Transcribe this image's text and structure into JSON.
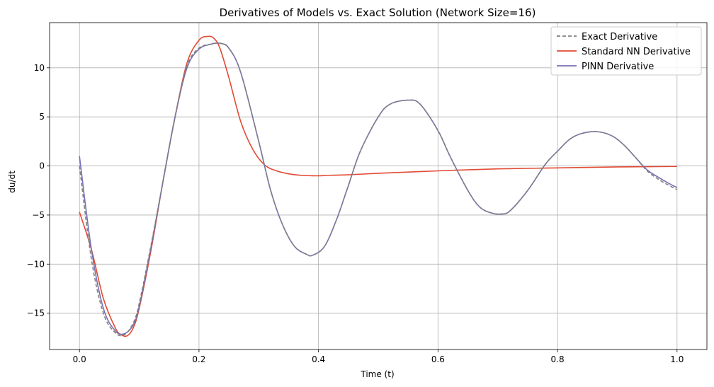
{
  "chart_data": {
    "type": "line",
    "title": "Derivatives of Models vs. Exact Solution (Network Size=16)",
    "xlabel": "Time (t)",
    "ylabel": "du/dt",
    "xlim": [
      -0.05,
      1.05
    ],
    "ylim": [
      -18.7,
      14.6
    ],
    "xticks": [
      0.0,
      0.2,
      0.4,
      0.6,
      0.8,
      1.0
    ],
    "xtick_labels": [
      "0.0",
      "0.2",
      "0.4",
      "0.6",
      "0.8",
      "1.0"
    ],
    "yticks": [
      -15,
      -10,
      -5,
      0,
      5,
      10
    ],
    "ytick_labels": [
      "−15",
      "−10",
      "−5",
      "0",
      "5",
      "10"
    ],
    "grid": true,
    "legend_position": "top-right",
    "series": [
      {
        "name": "Exact Derivative",
        "color": "#808080",
        "dash": "dashed",
        "x": [
          0.0,
          0.02,
          0.04,
          0.06,
          0.075,
          0.09,
          0.1,
          0.12,
          0.14,
          0.16,
          0.18,
          0.2,
          0.22,
          0.235,
          0.25,
          0.27,
          0.3,
          0.32,
          0.34,
          0.36,
          0.38,
          0.39,
          0.41,
          0.43,
          0.45,
          0.47,
          0.5,
          0.52,
          0.55,
          0.57,
          0.6,
          0.62,
          0.65,
          0.67,
          0.69,
          0.705,
          0.72,
          0.75,
          0.78,
          0.8,
          0.82,
          0.84,
          0.865,
          0.89,
          0.91,
          0.93,
          0.95,
          0.97,
          0.99,
          1.0
        ],
        "y": [
          0.0,
          -9.5,
          -15.0,
          -17.0,
          -17.2,
          -16.0,
          -14.0,
          -8.0,
          -1.5,
          5.0,
          10.2,
          12.0,
          12.4,
          12.5,
          12.0,
          9.5,
          2.5,
          -2.5,
          -6.0,
          -8.2,
          -9.0,
          -9.1,
          -8.2,
          -5.5,
          -2.0,
          1.5,
          5.0,
          6.3,
          6.7,
          6.3,
          3.6,
          1.0,
          -2.5,
          -4.2,
          -4.8,
          -4.9,
          -4.6,
          -2.5,
          0.2,
          1.5,
          2.7,
          3.3,
          3.5,
          3.1,
          2.2,
          0.9,
          -0.5,
          -1.4,
          -2.1,
          -2.4
        ]
      },
      {
        "name": "Standard NN Derivative",
        "color": "#e24a33",
        "dash": "solid",
        "x": [
          0.0,
          0.02,
          0.04,
          0.06,
          0.07,
          0.08,
          0.09,
          0.1,
          0.12,
          0.14,
          0.16,
          0.18,
          0.2,
          0.215,
          0.225,
          0.235,
          0.25,
          0.27,
          0.29,
          0.31,
          0.33,
          0.35,
          0.37,
          0.39,
          0.4,
          0.42,
          0.45,
          0.5,
          0.6,
          0.7,
          0.8,
          0.9,
          1.0
        ],
        "y": [
          -4.7,
          -8.5,
          -13.5,
          -16.5,
          -17.2,
          -17.3,
          -16.5,
          -14.5,
          -8.5,
          -1.5,
          5.0,
          10.5,
          12.8,
          13.2,
          13.0,
          12.0,
          9.0,
          4.5,
          1.7,
          0.1,
          -0.5,
          -0.8,
          -0.95,
          -1.0,
          -1.0,
          -0.95,
          -0.9,
          -0.75,
          -0.5,
          -0.3,
          -0.2,
          -0.1,
          -0.05
        ]
      },
      {
        "name": "PINN Derivative",
        "color": "#7570b3",
        "dash": "solid",
        "x": [
          0.0,
          0.02,
          0.04,
          0.06,
          0.075,
          0.09,
          0.1,
          0.12,
          0.14,
          0.16,
          0.18,
          0.2,
          0.22,
          0.235,
          0.25,
          0.27,
          0.3,
          0.32,
          0.34,
          0.36,
          0.38,
          0.39,
          0.41,
          0.43,
          0.45,
          0.47,
          0.5,
          0.52,
          0.55,
          0.57,
          0.6,
          0.62,
          0.65,
          0.67,
          0.69,
          0.705,
          0.72,
          0.75,
          0.78,
          0.8,
          0.82,
          0.84,
          0.865,
          0.89,
          0.91,
          0.93,
          0.95,
          0.97,
          0.99,
          1.0
        ],
        "y": [
          1.0,
          -8.5,
          -14.5,
          -16.8,
          -17.1,
          -16.2,
          -14.3,
          -8.2,
          -1.5,
          5.0,
          10.0,
          11.9,
          12.4,
          12.5,
          12.0,
          9.5,
          2.5,
          -2.5,
          -6.0,
          -8.2,
          -9.0,
          -9.1,
          -8.2,
          -5.5,
          -2.0,
          1.5,
          5.0,
          6.3,
          6.7,
          6.3,
          3.6,
          1.0,
          -2.5,
          -4.2,
          -4.8,
          -4.9,
          -4.6,
          -2.5,
          0.2,
          1.5,
          2.7,
          3.3,
          3.5,
          3.1,
          2.2,
          0.9,
          -0.4,
          -1.2,
          -1.9,
          -2.2
        ]
      }
    ]
  }
}
